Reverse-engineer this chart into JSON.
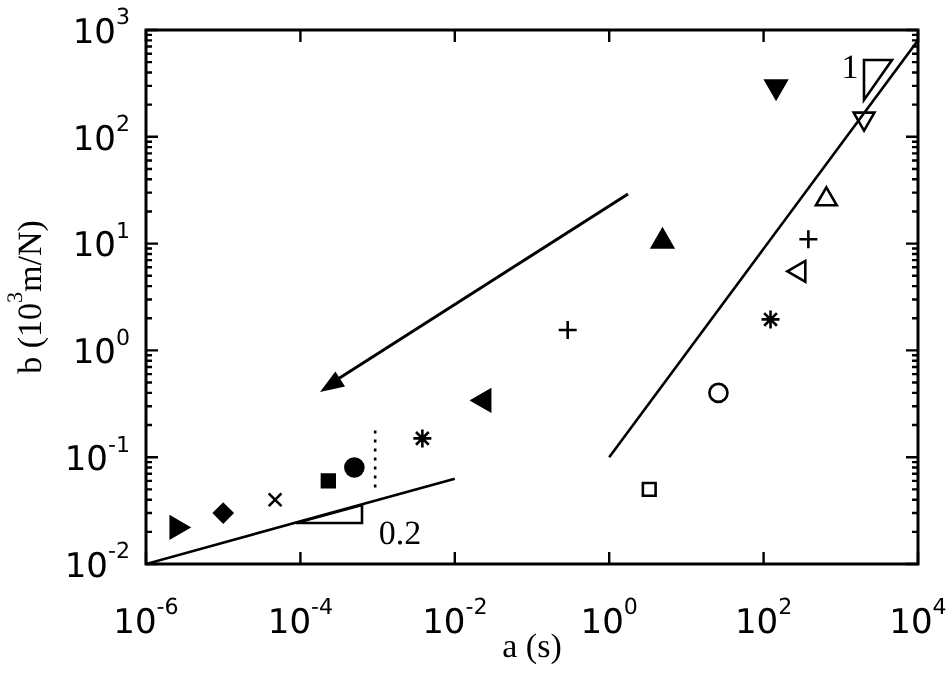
{
  "chart_data": {
    "type": "scatter",
    "xlabel": "a (s)",
    "ylabel": "b (10$^{3}$m/N)",
    "log": "xy",
    "grid": false,
    "legend": false,
    "xlim": [
      1e-06,
      10000
    ],
    "ylim": [
      0.01,
      1000
    ],
    "xticks": [
      {
        "value": 1e-06,
        "label": "10$^{-6}$"
      },
      {
        "value": 0.0001,
        "label": "10$^{-4}$"
      },
      {
        "value": 0.01,
        "label": "10$^{-2}$"
      },
      {
        "value": 1,
        "label": "10$^{0}$"
      },
      {
        "value": 100,
        "label": "10$^{2}$"
      },
      {
        "value": 10000,
        "label": "10$^{4}$"
      }
    ],
    "yticks": [
      {
        "value": 0.01,
        "label": "10$^{-2}$"
      },
      {
        "value": 0.1,
        "label": "10$^{-1}$"
      },
      {
        "value": 1,
        "label": "10$^{0}$"
      },
      {
        "value": 10,
        "label": "10$^{1}$"
      },
      {
        "value": 100,
        "label": "10$^{2}$"
      },
      {
        "value": 1000,
        "label": "10$^{3}$"
      }
    ],
    "annotations": [
      "0.2",
      "1"
    ],
    "series": [
      {
        "type": "line",
        "color": "#000000",
        "x": [
          1e-06,
          0.01
        ],
        "values": [
          0.01,
          0.063
        ]
      },
      {
        "type": "line",
        "color": "#000000",
        "x": [
          1,
          10000
        ],
        "values": [
          0.1,
          800
        ]
      },
      {
        "type": "line",
        "color": "#000000",
        "line_style": "dotted",
        "x": [
          0.00093,
          0.00093
        ],
        "values": [
          0.052,
          0.18
        ]
      },
      {
        "color": "#000000",
        "marker": "triangle-right",
        "x": [
          2.5e-06
        ],
        "values": [
          0.022
        ]
      },
      {
        "color": "#000000",
        "marker": "diamond",
        "x": [
          1e-05
        ],
        "values": [
          0.03
        ]
      },
      {
        "color": "#000000",
        "marker": "x",
        "x": [
          4.7e-05
        ],
        "values": [
          0.04
        ]
      },
      {
        "color": "#000000",
        "marker": "square",
        "x": [
          0.00023
        ],
        "values": [
          0.06
        ]
      },
      {
        "color": "#000000",
        "marker": "circle",
        "x": [
          0.0005
        ],
        "values": [
          0.08
        ]
      },
      {
        "color": "#000000",
        "marker": "cross-asterisk",
        "x": [
          0.0038
        ],
        "values": [
          0.15
        ]
      },
      {
        "color": "#000000",
        "marker": "triangle-left",
        "x": [
          0.024
        ],
        "values": [
          0.34
        ]
      },
      {
        "color": "#000000",
        "marker": "plus",
        "x": [
          0.29
        ],
        "values": [
          1.55
        ]
      },
      {
        "color": "#000000",
        "marker": "triangle",
        "x": [
          4.9
        ],
        "values": [
          10.5
        ]
      },
      {
        "color": "#000000",
        "marker": "triangle-down",
        "x": [
          145
        ],
        "values": [
          295
        ]
      },
      {
        "color": "#000000",
        "marker": "triangle-down-open",
        "x": [
          2000
        ],
        "values": [
          148
        ]
      },
      {
        "color": "#000000",
        "marker": "triangle-open",
        "x": [
          650
        ],
        "values": [
          26
        ]
      },
      {
        "color": "#000000",
        "marker": "plus",
        "x": [
          380
        ],
        "values": [
          11
        ]
      },
      {
        "color": "#000000",
        "marker": "triangle-left-open",
        "x": [
          290
        ],
        "values": [
          5.5
        ]
      },
      {
        "color": "#000000",
        "marker": "cross-asterisk",
        "x": [
          123
        ],
        "values": [
          1.95
        ]
      },
      {
        "color": "#000000",
        "marker": "circle-open",
        "x": [
          26
        ],
        "values": [
          0.4
        ]
      },
      {
        "color": "#000000",
        "marker": "square-open",
        "x": [
          3.3
        ],
        "values": [
          0.05
        ]
      }
    ]
  }
}
